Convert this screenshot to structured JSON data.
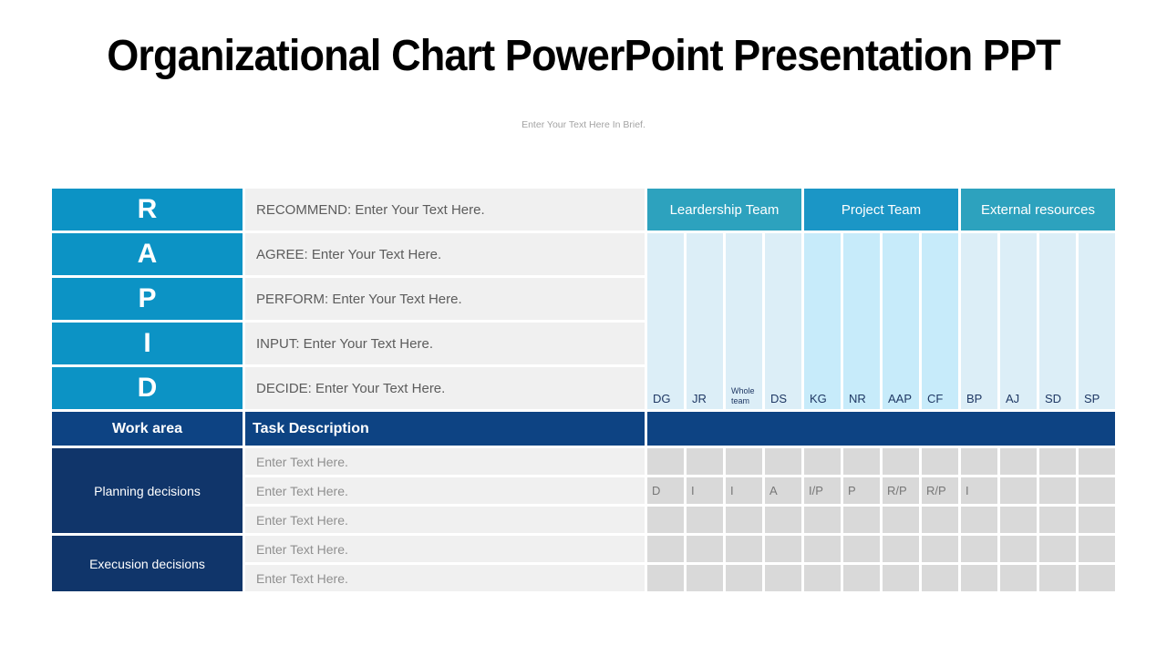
{
  "slide": {
    "title": "Organizational Chart PowerPoint Presentation PPT",
    "subtitle": "Enter Your Text Here In Brief."
  },
  "rapid_legend": {
    "rows": [
      {
        "letter": "R",
        "description": "RECOMMEND: Enter Your Text Here."
      },
      {
        "letter": "A",
        "description": "AGREE: Enter Your Text Here."
      },
      {
        "letter": "P",
        "description": "PERFORM: Enter Your Text Here."
      },
      {
        "letter": "I",
        "description": "INPUT: Enter Your Text Here."
      },
      {
        "letter": "D",
        "description": "DECIDE: Enter Your Text Here."
      }
    ]
  },
  "matrix": {
    "group_headers": [
      {
        "label": "Leardership Team",
        "columns": 4
      },
      {
        "label": "Project Team",
        "columns": 4
      },
      {
        "label": "External resources",
        "columns": 4
      }
    ],
    "columns": [
      "DG",
      "JR",
      "Whole team",
      "DS",
      "KG",
      "NR",
      "AAP",
      "CF",
      "BP",
      "AJ",
      "SD",
      "SP"
    ],
    "work_area_header": "Work area",
    "task_header": "Task Description",
    "row_groups": [
      {
        "label": "Planning decisions",
        "rows": 3
      },
      {
        "label": "Execusion decisions",
        "rows": 2
      }
    ],
    "task_rows": [
      "Enter Text Here.",
      "Enter Text Here.",
      "Enter Text Here.",
      "Enter Text Here.",
      "Enter Text Here."
    ],
    "assignments": [
      [
        "",
        "",
        "",
        "",
        "",
        "",
        "",
        "",
        "",
        "",
        "",
        ""
      ],
      [
        "D",
        "I",
        "I",
        "A",
        "I/P",
        "P",
        "R/P",
        "R/P",
        "I",
        "",
        "",
        ""
      ],
      [
        "",
        "",
        "",
        "",
        "",
        "",
        "",
        "",
        "",
        "",
        "",
        ""
      ],
      [
        "",
        "",
        "",
        "",
        "",
        "",
        "",
        "",
        "",
        "",
        "",
        ""
      ],
      [
        "",
        "",
        "",
        "",
        "",
        "",
        "",
        "",
        "",
        "",
        "",
        ""
      ]
    ]
  },
  "colors": {
    "accent_blue": "#0C93C5",
    "teal_header": "#2DA2BE",
    "blue_header": "#1B96C6",
    "navy_header": "#0D4383",
    "navy_cell": "#10356A",
    "light_col": "#DCEEF7",
    "light_col_alt": "#C7EBFA",
    "gray_cell": "#D9D9D9",
    "desc_bg": "#F0F0F0"
  }
}
